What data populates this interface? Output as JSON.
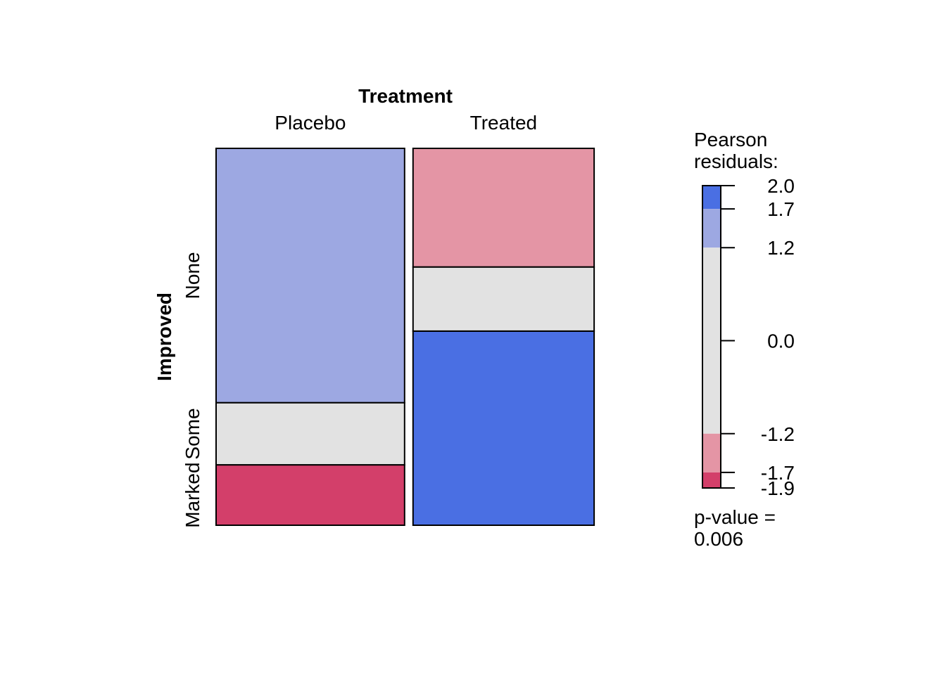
{
  "chart_data": {
    "type": "mosaic",
    "title": "",
    "column_variable": "Treatment",
    "row_variable": "Improved",
    "columns": [
      "Placebo",
      "Treated"
    ],
    "rows": [
      "None",
      "Some",
      "Marked"
    ],
    "column_proportions": [
      0.51,
      0.49
    ],
    "cells": [
      {
        "column": "Placebo",
        "row": "None",
        "proportion": 0.675,
        "residual": 1.6
      },
      {
        "column": "Placebo",
        "row": "Some",
        "proportion": 0.165,
        "residual": 0.3
      },
      {
        "column": "Placebo",
        "row": "Marked",
        "proportion": 0.16,
        "residual": -1.9
      },
      {
        "column": "Treated",
        "row": "None",
        "proportion": 0.315,
        "residual": -1.4
      },
      {
        "column": "Treated",
        "row": "Some",
        "proportion": 0.17,
        "residual": -0.3
      },
      {
        "column": "Treated",
        "row": "Marked",
        "proportion": 0.515,
        "residual": 2.0
      }
    ],
    "legend": {
      "title_lines": [
        "Pearson",
        "residuals:"
      ],
      "range": [
        -1.9,
        2.0
      ],
      "bands": [
        {
          "from": 1.7,
          "to": 2.0,
          "color": "#4a6fe3"
        },
        {
          "from": 1.2,
          "to": 1.7,
          "color": "#9da8e2"
        },
        {
          "from": -1.2,
          "to": 1.2,
          "color": "#e2e2e2"
        },
        {
          "from": -1.7,
          "to": -1.2,
          "color": "#e495a5"
        },
        {
          "from": -1.9,
          "to": -1.7,
          "color": "#d33f6a"
        }
      ],
      "ticks": [
        {
          "value": 2.0,
          "label": "2.0"
        },
        {
          "value": 1.7,
          "label": "1.7"
        },
        {
          "value": 1.2,
          "label": "1.2"
        },
        {
          "value": 0.0,
          "label": "0.0"
        },
        {
          "value": -1.2,
          "label": "-1.2"
        },
        {
          "value": -1.7,
          "label": "-1.7"
        },
        {
          "value": -1.9,
          "label": "-1.9"
        }
      ],
      "pvalue_lines": [
        "p-value =",
        "0.006"
      ]
    }
  }
}
